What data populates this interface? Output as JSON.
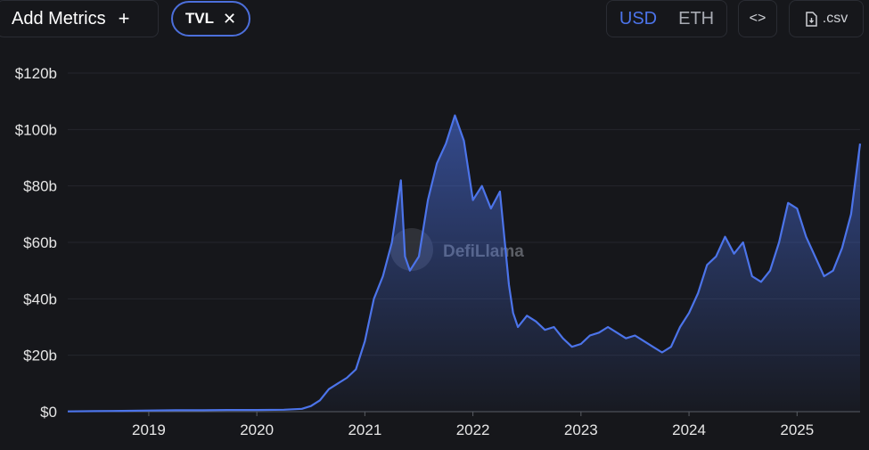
{
  "toolbar": {
    "add_metrics_label": "Add Metrics",
    "add_icon": "plus-icon",
    "metric_chip_label": "TVL",
    "remove_icon": "close-icon",
    "currency_options": [
      "USD",
      "ETH"
    ],
    "selected_currency": "USD",
    "embed_icon": "code-icon",
    "csv_label": ".csv",
    "csv_icon": "file-download-icon"
  },
  "watermark": "DefiLlama",
  "colors": {
    "line": "#4c74ea",
    "accent": "#4c74ea",
    "background": "#16171b"
  },
  "chart_data": {
    "type": "area",
    "series": [
      {
        "x": [
          "2018-04",
          "2018-07",
          "2018-10",
          "2019-01",
          "2019-04",
          "2019-07",
          "2019-10",
          "2020-01",
          "2020-04",
          "2020-06",
          "2020-07",
          "2020-08",
          "2020-09",
          "2020-10",
          "2020-11",
          "2020-12",
          "2021-01",
          "2021-02",
          "2021-03",
          "2021-04",
          "2021-05",
          "2021-05-15",
          "2021-06",
          "2021-07",
          "2021-08",
          "2021-09",
          "2021-10",
          "2021-11",
          "2021-12",
          "2022-01",
          "2022-02",
          "2022-03",
          "2022-04",
          "2022-05",
          "2022-05-15",
          "2022-06",
          "2022-07",
          "2022-08",
          "2022-09",
          "2022-10",
          "2022-11",
          "2022-12",
          "2023-01",
          "2023-02",
          "2023-03",
          "2023-04",
          "2023-05",
          "2023-06",
          "2023-07",
          "2023-08",
          "2023-09",
          "2023-10",
          "2023-11",
          "2023-12",
          "2024-01",
          "2024-02",
          "2024-03",
          "2024-04",
          "2024-05",
          "2024-06",
          "2024-07",
          "2024-08",
          "2024-09",
          "2024-10",
          "2024-11",
          "2024-12",
          "2025-01",
          "2025-02",
          "2025-03",
          "2025-04",
          "2025-05",
          "2025-06",
          "2025-07",
          "2025-08"
        ],
        "values": [
          0.1,
          0.2,
          0.3,
          0.4,
          0.5,
          0.5,
          0.6,
          0.6,
          0.7,
          1.0,
          2.0,
          4.0,
          8.0,
          10.0,
          12.0,
          15.0,
          25.0,
          40.0,
          48.0,
          60.0,
          82.0,
          55.0,
          50.0,
          55.0,
          75.0,
          88.0,
          95.0,
          105.0,
          96.0,
          75.0,
          80.0,
          72.0,
          78.0,
          45.0,
          35.0,
          30.0,
          34.0,
          32.0,
          29.0,
          30.0,
          26.0,
          23.0,
          24.0,
          27.0,
          28.0,
          30.0,
          28.0,
          26.0,
          27.0,
          25.0,
          23.0,
          21.0,
          23.0,
          30.0,
          35.0,
          42.0,
          52.0,
          55.0,
          62.0,
          56.0,
          60.0,
          48.0,
          46.0,
          50.0,
          60.0,
          74.0,
          72.0,
          62.0,
          55.0,
          48.0,
          50.0,
          58.0,
          70.0,
          95.0
        ]
      }
    ],
    "yticks": [
      "$0",
      "$20b",
      "$40b",
      "$60b",
      "$80b",
      "$100b",
      "$120b"
    ],
    "xticks": [
      "2019",
      "2020",
      "2021",
      "2022",
      "2023",
      "2024",
      "2025"
    ],
    "ylim": [
      0,
      120
    ],
    "xlim": [
      "2018-04",
      "2025-08"
    ],
    "grid": true,
    "title": "",
    "xlabel": "",
    "ylabel": ""
  }
}
